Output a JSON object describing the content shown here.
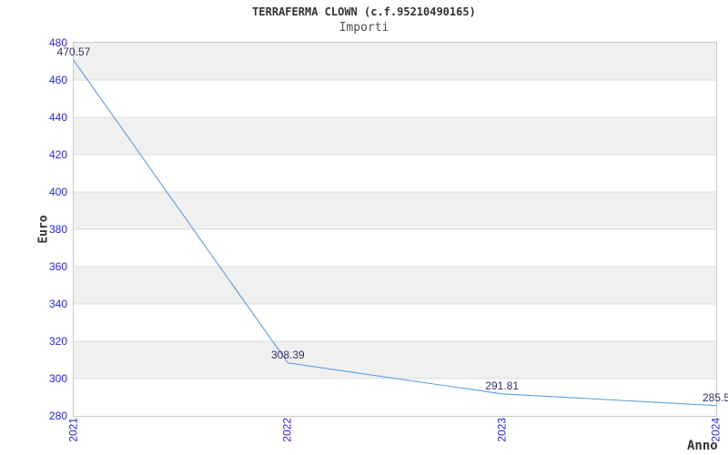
{
  "chart_data": {
    "type": "line",
    "title": "TERRAFERMA CLOWN (c.f.95210490165)",
    "subtitle": "Importi",
    "xlabel": "Anno",
    "ylabel": "Euro",
    "categories": [
      "2021",
      "2022",
      "2023",
      "2024"
    ],
    "series": [
      {
        "name": "Importi",
        "values": [
          470.57,
          308.39,
          291.81,
          285.5
        ]
      }
    ],
    "point_labels": [
      "470.57",
      "308.39",
      "291.81",
      "285.5"
    ],
    "ylim": [
      280,
      480
    ],
    "y_ticks": [
      480,
      460,
      440,
      420,
      400,
      380,
      360,
      340,
      320,
      300,
      280
    ],
    "grid": "horizontal-alternating-bands",
    "legend_position": "none",
    "colors": {
      "line": "#5f9ddb",
      "tick_label": "#2626cc",
      "point_label": "#333366",
      "band": "#f0f0f0",
      "grid_line": "#dcdcdc",
      "axis_border": "#c9c9c9",
      "title": "#333333",
      "subtitle": "#4f4f4f",
      "axis_title": "#333333"
    }
  }
}
